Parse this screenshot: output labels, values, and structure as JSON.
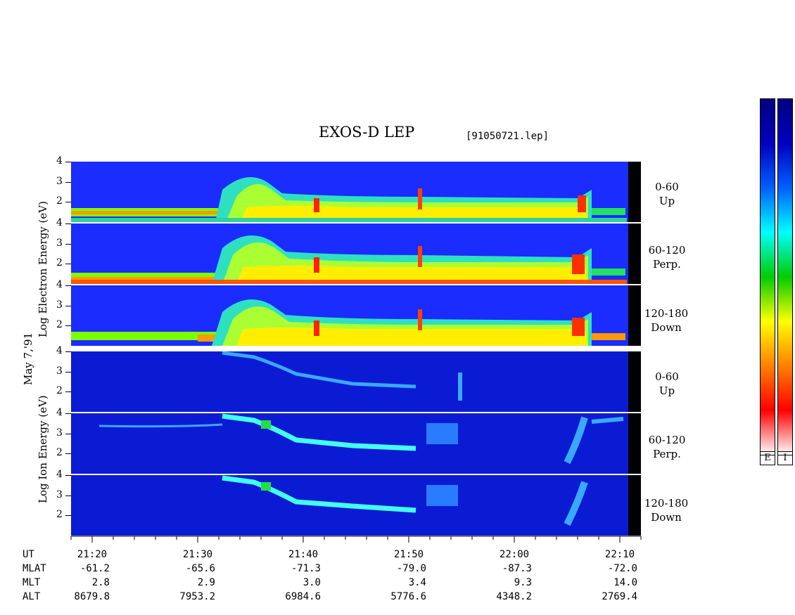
{
  "header": {
    "title": "EXOS-D LEP",
    "file": "[91050721.lep]"
  },
  "date_label": "May  7,'91",
  "electron_ylabel": "Log  Electron  Energy  (eV)",
  "ion_ylabel": "Log  Ion  Energy  (eV)",
  "panels": [
    {
      "species": "electron",
      "pitch_angle": "0-60",
      "direction": "Up"
    },
    {
      "species": "electron",
      "pitch_angle": "60-120",
      "direction": "Perp."
    },
    {
      "species": "electron",
      "pitch_angle": "120-180",
      "direction": "Down"
    },
    {
      "species": "ion",
      "pitch_angle": "0-60",
      "direction": "Up"
    },
    {
      "species": "ion",
      "pitch_angle": "60-120",
      "direction": "Perp."
    },
    {
      "species": "ion",
      "pitch_angle": "120-180",
      "direction": "Down"
    }
  ],
  "colorbar": {
    "labels": [
      "E",
      "I"
    ],
    "colors": [
      "#ffffff",
      "#ff0000",
      "#ff8000",
      "#ffff00",
      "#00cc00",
      "#00ffff",
      "#0060ff",
      "#0000c0",
      "#000080"
    ]
  },
  "chart_data": {
    "type": "heatmap",
    "title": "EXOS-D LEP",
    "ylabel_electron": "Log Electron Energy (eV)",
    "ylabel_ion": "Log Ion Energy (eV)",
    "ylim": [
      1,
      4
    ],
    "yticks": [
      "4",
      "3",
      "2"
    ],
    "xlim": [
      "21:18",
      "22:12"
    ],
    "orbit_table": {
      "rows": [
        "UT",
        "MLAT",
        "MLT",
        "ALT"
      ],
      "UT": [
        "21:20",
        "21:30",
        "21:40",
        "21:50",
        "22:00",
        "22:10"
      ],
      "MLAT": [
        "-61.2",
        "-65.6",
        "-71.3",
        "-79.0",
        "-87.3",
        "-72.0"
      ],
      "MLT": [
        "2.8",
        "2.9",
        "3.0",
        "3.4",
        "9.3",
        "14.0"
      ],
      "ALT": [
        "8679.8",
        "7953.2",
        "6984.6",
        "5776.6",
        "4348.2",
        "2769.4"
      ]
    }
  }
}
